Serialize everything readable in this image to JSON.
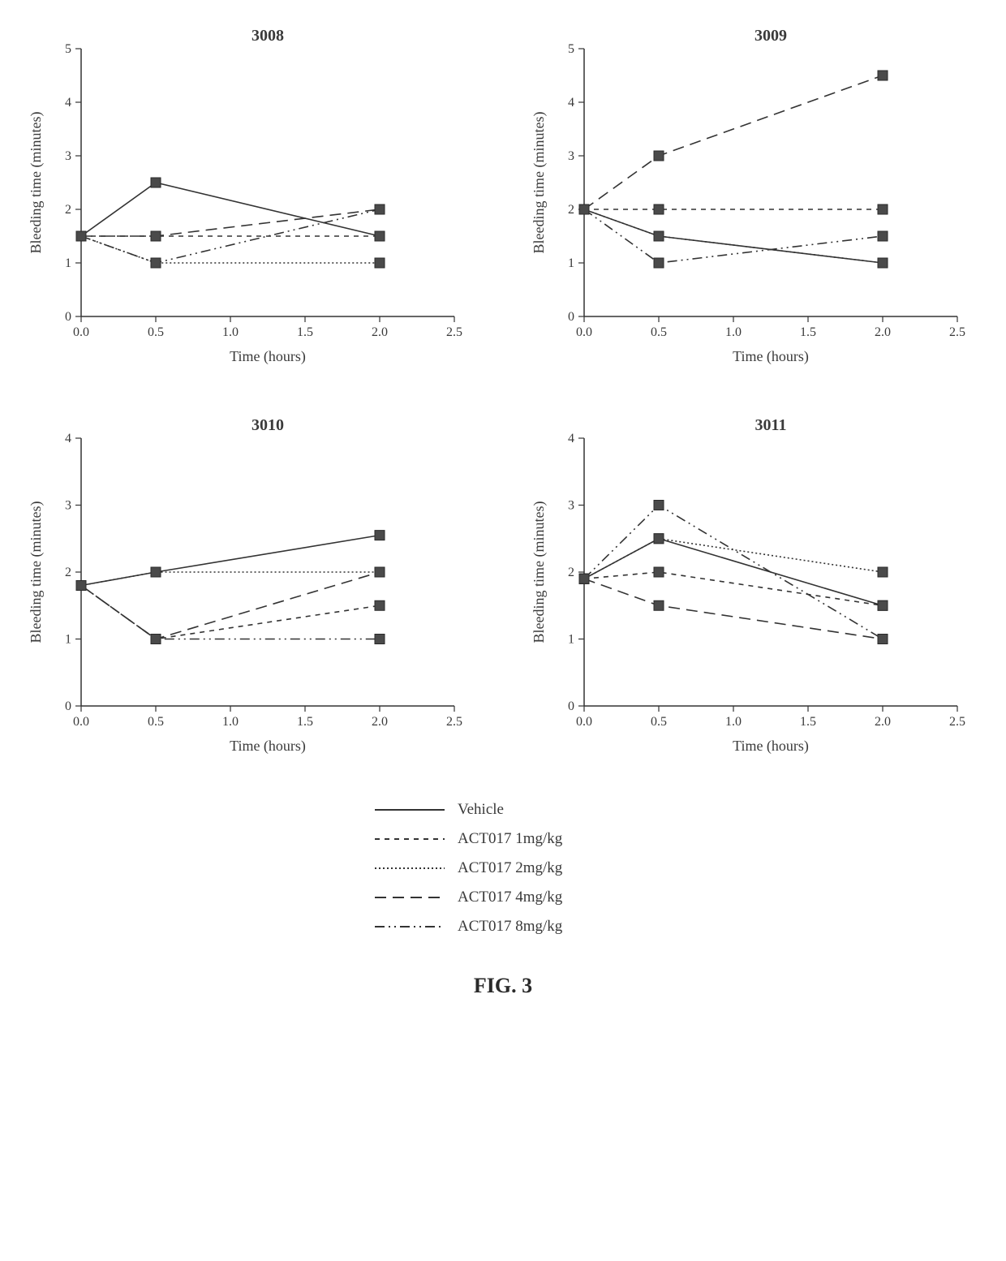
{
  "figure_label": "FIG. 3",
  "axis": {
    "xlabel": "Time (hours)",
    "ylabel": "Bleeding time (minutes)",
    "xlim": [
      0,
      2.5
    ],
    "xtick_step": 0.5,
    "xtick_labels": [
      "0.0",
      "0.5",
      "1.0",
      "1.5",
      "2.0",
      "2.5"
    ],
    "label_fontsize": 18,
    "tick_fontsize": 16,
    "axis_color": "#333333",
    "text_color": "#3a3a3a",
    "marker_fill": "#4a4a4a",
    "marker_stroke": "#2a2a2a",
    "marker_size_half": 6,
    "line_width": 1.6,
    "background": "#ffffff"
  },
  "series": [
    {
      "key": "vehicle",
      "label": "Vehicle",
      "dash": "solid"
    },
    {
      "key": "d1",
      "label": "ACT017 1mg/kg",
      "dash": "short"
    },
    {
      "key": "d2",
      "label": "ACT017 2mg/kg",
      "dash": "dot"
    },
    {
      "key": "d4",
      "label": "ACT017 4mg/kg",
      "dash": "long"
    },
    {
      "key": "d8",
      "label": "ACT017 8mg/kg",
      "dash": "dashdotdot"
    }
  ],
  "panels": [
    {
      "title": "3008",
      "ylim": [
        0,
        5
      ],
      "ytick_step": 1,
      "ytick_labels": [
        "0",
        "1",
        "2",
        "3",
        "4",
        "5"
      ],
      "x": [
        0.0,
        0.5,
        2.0
      ],
      "data": {
        "vehicle": [
          1.5,
          2.5,
          1.5
        ],
        "d1": [
          1.5,
          1.5,
          1.5
        ],
        "d2": [
          1.5,
          1.0,
          1.0
        ],
        "d4": [
          1.5,
          1.5,
          2.0
        ],
        "d8": [
          1.5,
          1.0,
          2.0
        ]
      }
    },
    {
      "title": "3009",
      "ylim": [
        0,
        5
      ],
      "ytick_step": 1,
      "ytick_labels": [
        "0",
        "1",
        "2",
        "3",
        "4",
        "5"
      ],
      "x": [
        0.0,
        0.5,
        2.0
      ],
      "data": {
        "vehicle": [
          2.0,
          1.5,
          1.0
        ],
        "d1": [
          2.0,
          2.0,
          2.0
        ],
        "d2": [
          2.0,
          1.5,
          1.0
        ],
        "d4": [
          2.0,
          3.0,
          4.5
        ],
        "d8": [
          2.0,
          1.0,
          1.5
        ]
      }
    },
    {
      "title": "3010",
      "ylim": [
        0,
        4
      ],
      "ytick_step": 1,
      "ytick_labels": [
        "0",
        "1",
        "2",
        "3",
        "4"
      ],
      "x": [
        0.0,
        0.5,
        2.0
      ],
      "data": {
        "vehicle": [
          1.8,
          2.0,
          2.55
        ],
        "d1": [
          1.8,
          1.0,
          1.5
        ],
        "d2": [
          1.8,
          2.0,
          2.0
        ],
        "d4": [
          1.8,
          1.0,
          2.0
        ],
        "d8": [
          1.8,
          1.0,
          1.0
        ]
      }
    },
    {
      "title": "3011",
      "ylim": [
        0,
        4
      ],
      "ytick_step": 1,
      "ytick_labels": [
        "0",
        "1",
        "2",
        "3",
        "4"
      ],
      "x": [
        0.0,
        0.5,
        2.0
      ],
      "data": {
        "vehicle": [
          1.9,
          2.5,
          1.5
        ],
        "d1": [
          1.9,
          2.0,
          1.5
        ],
        "d2": [
          1.9,
          2.5,
          2.0
        ],
        "d4": [
          1.9,
          1.5,
          1.0
        ],
        "d8": [
          1.9,
          3.0,
          1.0
        ]
      }
    }
  ]
}
